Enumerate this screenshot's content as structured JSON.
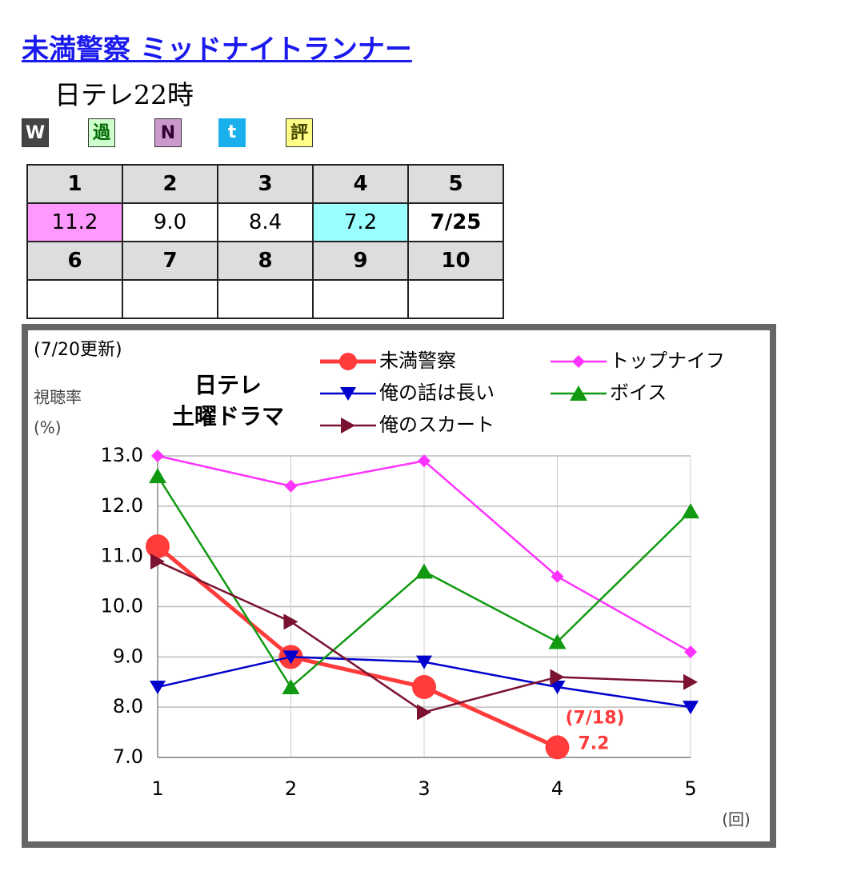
{
  "header": {
    "title": "未満警察 ミッドナイトランナー",
    "subtitle": "日テレ22時"
  },
  "icons": [
    "W",
    "過",
    "N",
    "t",
    "評"
  ],
  "table": {
    "rows": [
      [
        "1",
        "2",
        "3",
        "4",
        "5"
      ],
      [
        "11.2",
        "9.0",
        "8.4",
        "7.2",
        "7/25"
      ],
      [
        "6",
        "7",
        "8",
        "9",
        "10"
      ]
    ]
  },
  "chart_data": {
    "type": "line",
    "updated": "(7/20更新)",
    "title": [
      "日テレ",
      "土曜ドラマ"
    ],
    "y_label": [
      "視聴率",
      "(%)"
    ],
    "x_label": "(回)",
    "annotation": "(7/18)",
    "categories": [
      "1",
      "2",
      "3",
      "4",
      "5"
    ],
    "series": [
      {
        "name": "未満警察",
        "color": "#ff3b3b",
        "marker": "circle",
        "values": [
          11.2,
          9.0,
          8.4,
          7.2,
          null
        ]
      },
      {
        "name": "トップナイフ",
        "color": "#ff33ff",
        "marker": "diamond",
        "values": [
          13.0,
          12.4,
          12.9,
          10.6,
          9.1
        ]
      },
      {
        "name": "俺の話は長い",
        "color": "#0000cc",
        "marker": "triangle-down",
        "values": [
          8.4,
          9.0,
          8.9,
          8.4,
          8.0
        ]
      },
      {
        "name": "ボイス",
        "color": "#119911",
        "marker": "triangle-up",
        "values": [
          12.6,
          8.4,
          10.7,
          9.3,
          11.9
        ]
      },
      {
        "name": "俺のスカート",
        "color": "#7a1230",
        "marker": "triangle-right",
        "values": [
          10.9,
          9.7,
          7.9,
          8.6,
          8.5
        ]
      }
    ],
    "ylim": [
      7,
      13
    ],
    "yticks": [
      {
        "value": 7,
        "label": "7.0"
      },
      {
        "value": 8,
        "label": "8.0"
      },
      {
        "value": 9,
        "label": "9.0"
      },
      {
        "value": 10,
        "label": "10.0"
      },
      {
        "value": 11,
        "label": "11.0"
      },
      {
        "value": 12,
        "label": "12.0"
      },
      {
        "value": 13,
        "label": "13.0"
      }
    ],
    "grid": true
  }
}
